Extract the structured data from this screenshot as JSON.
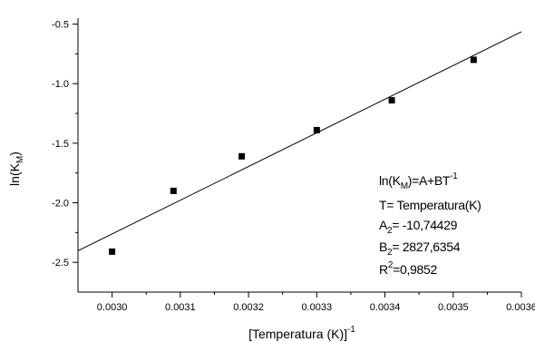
{
  "chart_data": {
    "type": "scatter",
    "xlabel": {
      "main": "[Temperatura (K)]",
      "sup": "-1"
    },
    "ylabel": {
      "pre": "ln(K",
      "sub": "M",
      "post": ")"
    },
    "xlim": [
      0.00295,
      0.0036
    ],
    "ylim": [
      -2.75,
      -0.45
    ],
    "x_ticks": [
      0.003,
      0.0031,
      0.0032,
      0.0033,
      0.0034,
      0.0035,
      0.0036
    ],
    "x_tick_labels": [
      "0.0030",
      "0.0031",
      "0.0032",
      "0.0033",
      "0.0034",
      "0.0035",
      "0.0036"
    ],
    "y_ticks": [
      -2.5,
      -2.0,
      -1.5,
      -1.0,
      -0.5
    ],
    "y_tick_labels": [
      "-2.5",
      "-2.0",
      "-1.5",
      "-1.0",
      "-0.5"
    ],
    "grid": false,
    "series": [
      {
        "points": [
          {
            "x": 0.003,
            "y": -2.41
          },
          {
            "x": 0.00309,
            "y": -1.9
          },
          {
            "x": 0.00319,
            "y": -1.61
          },
          {
            "x": 0.0033,
            "y": -1.39
          },
          {
            "x": 0.00341,
            "y": -1.14
          },
          {
            "x": 0.00353,
            "y": -0.8
          }
        ],
        "marker": "square",
        "color": "#000000"
      }
    ],
    "fit_line": {
      "A": -10.74429,
      "B": 2827.6354,
      "x_range": [
        0.00295,
        0.0036
      ]
    },
    "annotations": {
      "line1": {
        "a": "ln(K",
        "sub": "M",
        "b": ")=A+BT",
        "sup": "-1"
      },
      "line2": "T= Temperatura(K)",
      "line3": {
        "a": "A",
        "sub": "2",
        "b": "= -10,74429"
      },
      "line4": {
        "a": "B",
        "sub": "2",
        "b": "= 2827,6354"
      },
      "line5": {
        "a": "R",
        "sup": "2",
        "b": "=0,9852"
      }
    }
  }
}
